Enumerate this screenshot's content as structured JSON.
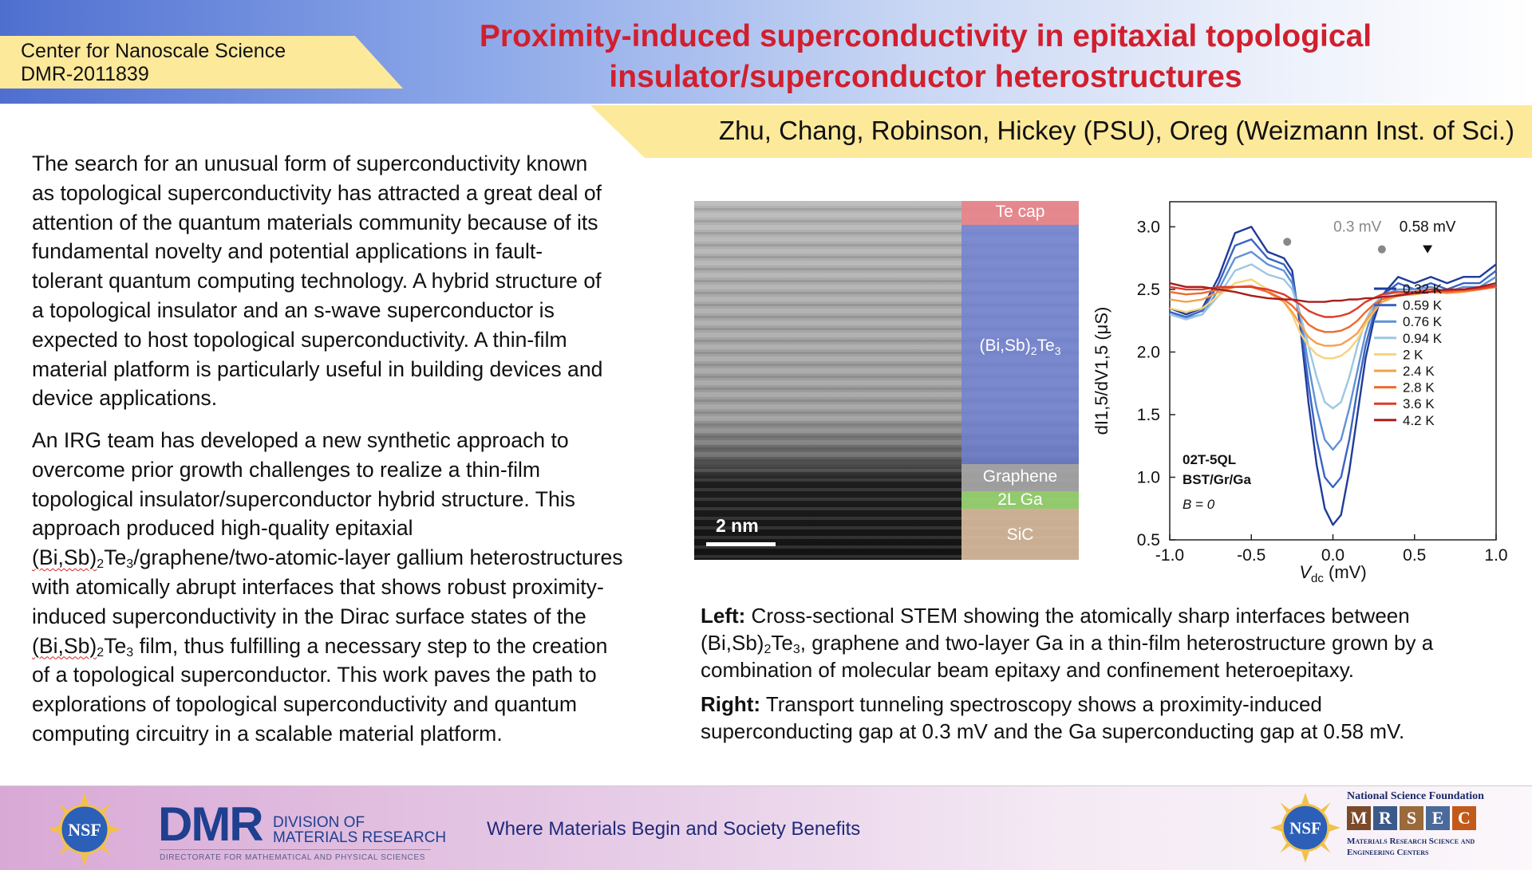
{
  "header": {
    "center_line1": "Center for Nanoscale Science",
    "center_line2": "DMR-2011839",
    "title_line1": "Proximity-induced superconductivity in epitaxial topological",
    "title_line2": "insulator/superconductor heterostructures",
    "authors": "Zhu, Chang, Robinson, Hickey (PSU), Oreg (Weizmann Inst. of Sci.)"
  },
  "body": {
    "p1_lines": [
      "The search for an unusual form of superconductivity known",
      "as topological superconductivity has attracted a great deal of",
      "attention of the quantum materials community because of its",
      "fundamental novelty and potential applications in fault-",
      "tolerant quantum computing technology. A hybrid structure of",
      "a topological insulator and an s-wave superconductor is",
      "expected to host topological superconductivity. A thin-film",
      "material platform is particularly useful in building devices and",
      "device applications."
    ],
    "p2_lines": [
      "An IRG team has developed a new synthetic approach to",
      "overcome prior growth challenges to realize a thin-film",
      "topological insulator/superconductor hybrid structure. This",
      "approach produced high-quality epitaxial"
    ],
    "p2_formula_a": "(Bi,Sb)",
    "p2_sub_a": "2",
    "p2_formula_a_rest": "Te",
    "p2_sub_a2": "3",
    "p2_after_formula_a": "/graphene/two-atomic-layer gallium heterostructures",
    "p2_lines_b": [
      "with atomically abrupt interfaces that shows robust proximity-",
      "induced superconductivity in the Dirac surface states of the"
    ],
    "p2_after_formula_b": " film, thus fulfilling a necessary step to the creation",
    "p2_lines_c": [
      "of a topological superconductor. This work paves the path to",
      "explorations of topological superconductivity and quantum",
      "computing circuitry in a scalable material platform."
    ]
  },
  "stem": {
    "layers": [
      "Te cap",
      "(Bi,Sb)",
      "Graphene",
      "2L Ga",
      "SiC"
    ],
    "bst_sub1": "2",
    "bst_te": "Te",
    "bst_sub2": "3",
    "scale": "2 nm",
    "colors": {
      "te_cap": "#e8848a",
      "bst": "#6f80d6",
      "graphene": "#a8a8a8",
      "ga": "#9bd873",
      "sic": "#d9bc9e"
    }
  },
  "caption": {
    "left_label": "Left:",
    "left_text_a": " Cross-sectional STEM showing the atomically sharp interfaces between",
    "left_text_b1": "(Bi,Sb)",
    "left_text_b1_sub": "2",
    "left_text_b1_te": "Te",
    "left_text_b1_sub2": "3",
    "left_text_b2": ", graphene and two-layer Ga in a thin-film heterostructure grown by a",
    "left_text_c": "combination of molecular beam epitaxy and confinement heteroepitaxy.",
    "right_label": "Right:",
    "right_text_a": " Transport tunneling spectroscopy shows a proximity-induced",
    "right_text_b": "superconducting gap at 0.3 mV and the Ga superconducting gap at 0.58 mV."
  },
  "footer": {
    "nsf": "NSF",
    "dmr": "DMR",
    "division_line1": "DIVISION OF",
    "division_line2": "MATERIALS RESEARCH",
    "directorate": "DIRECTORATE FOR MATHEMATICAL AND PHYSICAL SCIENCES",
    "tagline": "Where Materials Begin and Society Benefits",
    "nsf_full": "National Science Foundation",
    "mrsec_letters": [
      "M",
      "R",
      "S",
      "E",
      "C"
    ],
    "mrsec_line1": "Materials Research Science and",
    "mrsec_line2": "Engineering Centers"
  },
  "chart_data": {
    "type": "line",
    "xlabel_main": "V",
    "xlabel_sub": "dc",
    "xlabel_unit": " (mV)",
    "ylabel": "dI1,5/dV1,5 (μS)",
    "xlim": [
      -1.0,
      1.0
    ],
    "ylim": [
      0.5,
      3.2
    ],
    "xticks": [
      "-1.0",
      "-0.5",
      "0.0",
      "0.5",
      "1.0"
    ],
    "xtick_values": [
      -1.0,
      -0.5,
      0.0,
      0.5,
      1.0
    ],
    "yticks": [
      "0.5",
      "1.0",
      "1.5",
      "2.0",
      "2.5",
      "3.0"
    ],
    "ytick_values": [
      0.5,
      1.0,
      1.5,
      2.0,
      2.5,
      3.0
    ],
    "annot_sample_1": "02T-5QL",
    "annot_sample_2": "BST/Gr/Ga",
    "annot_b": "B = 0",
    "marker_03": "0.3 mV",
    "marker_058": "0.58 mV",
    "marker_points": [
      {
        "x": -0.28,
        "y": 2.88
      },
      {
        "x": 0.3,
        "y": 2.82
      }
    ],
    "marker_triangle": {
      "x": 0.58,
      "y": 2.82
    },
    "x": [
      -1.0,
      -0.9,
      -0.8,
      -0.7,
      -0.6,
      -0.5,
      -0.4,
      -0.3,
      -0.25,
      -0.2,
      -0.15,
      -0.1,
      -0.05,
      0.0,
      0.05,
      0.1,
      0.15,
      0.2,
      0.25,
      0.3,
      0.4,
      0.5,
      0.6,
      0.7,
      0.8,
      0.9,
      1.0
    ],
    "series": [
      {
        "name": "0.32 K",
        "color": "#1f3c99",
        "values": [
          2.35,
          2.3,
          2.35,
          2.6,
          2.95,
          3.0,
          2.8,
          2.75,
          2.65,
          2.2,
          1.6,
          1.1,
          0.75,
          0.62,
          0.7,
          1.05,
          1.5,
          1.95,
          2.25,
          2.45,
          2.6,
          2.55,
          2.6,
          2.55,
          2.6,
          2.6,
          2.7
        ]
      },
      {
        "name": "0.59 K",
        "color": "#3a64c4",
        "values": [
          2.32,
          2.28,
          2.33,
          2.55,
          2.85,
          2.9,
          2.75,
          2.7,
          2.6,
          2.25,
          1.75,
          1.3,
          1.0,
          0.92,
          1.0,
          1.3,
          1.7,
          2.05,
          2.3,
          2.45,
          2.55,
          2.5,
          2.55,
          2.5,
          2.55,
          2.55,
          2.65
        ]
      },
      {
        "name": "0.76 K",
        "color": "#5f92d6",
        "values": [
          2.3,
          2.27,
          2.3,
          2.5,
          2.75,
          2.8,
          2.7,
          2.65,
          2.55,
          2.3,
          1.9,
          1.55,
          1.3,
          1.22,
          1.3,
          1.55,
          1.85,
          2.15,
          2.35,
          2.45,
          2.5,
          2.5,
          2.52,
          2.48,
          2.52,
          2.52,
          2.6
        ]
      },
      {
        "name": "0.94 K",
        "color": "#9cc7e4",
        "values": [
          2.3,
          2.26,
          2.3,
          2.45,
          2.65,
          2.7,
          2.62,
          2.58,
          2.5,
          2.3,
          2.05,
          1.8,
          1.6,
          1.55,
          1.6,
          1.8,
          2.05,
          2.25,
          2.38,
          2.45,
          2.48,
          2.48,
          2.5,
          2.47,
          2.5,
          2.5,
          2.55
        ]
      },
      {
        "name": "2 K",
        "color": "#f8d27c",
        "values": [
          2.35,
          2.32,
          2.35,
          2.45,
          2.55,
          2.58,
          2.5,
          2.4,
          2.3,
          2.15,
          2.05,
          1.98,
          1.95,
          1.95,
          1.97,
          2.02,
          2.1,
          2.22,
          2.32,
          2.4,
          2.45,
          2.47,
          2.48,
          2.47,
          2.48,
          2.5,
          2.52
        ]
      },
      {
        "name": "2.4 K",
        "color": "#f5a04a",
        "values": [
          2.42,
          2.4,
          2.42,
          2.48,
          2.52,
          2.53,
          2.48,
          2.4,
          2.32,
          2.22,
          2.12,
          2.07,
          2.05,
          2.05,
          2.06,
          2.1,
          2.15,
          2.25,
          2.33,
          2.4,
          2.45,
          2.46,
          2.48,
          2.47,
          2.48,
          2.5,
          2.52
        ]
      },
      {
        "name": "2.8 K",
        "color": "#ee6a2f",
        "values": [
          2.48,
          2.46,
          2.47,
          2.5,
          2.52,
          2.52,
          2.48,
          2.42,
          2.37,
          2.3,
          2.22,
          2.18,
          2.16,
          2.16,
          2.17,
          2.2,
          2.25,
          2.32,
          2.38,
          2.42,
          2.46,
          2.47,
          2.48,
          2.48,
          2.49,
          2.5,
          2.52
        ]
      },
      {
        "name": "3.6 K",
        "color": "#de3a2a",
        "values": [
          2.52,
          2.5,
          2.5,
          2.52,
          2.52,
          2.52,
          2.5,
          2.46,
          2.42,
          2.38,
          2.33,
          2.3,
          2.28,
          2.28,
          2.29,
          2.31,
          2.35,
          2.4,
          2.43,
          2.46,
          2.48,
          2.48,
          2.5,
          2.49,
          2.5,
          2.51,
          2.53
        ]
      },
      {
        "name": "4.2 K",
        "color": "#a81d1d",
        "values": [
          2.55,
          2.52,
          2.52,
          2.5,
          2.48,
          2.45,
          2.43,
          2.42,
          2.42,
          2.41,
          2.4,
          2.4,
          2.4,
          2.41,
          2.41,
          2.42,
          2.42,
          2.43,
          2.43,
          2.44,
          2.45,
          2.47,
          2.48,
          2.5,
          2.5,
          2.52,
          2.55
        ]
      }
    ]
  }
}
